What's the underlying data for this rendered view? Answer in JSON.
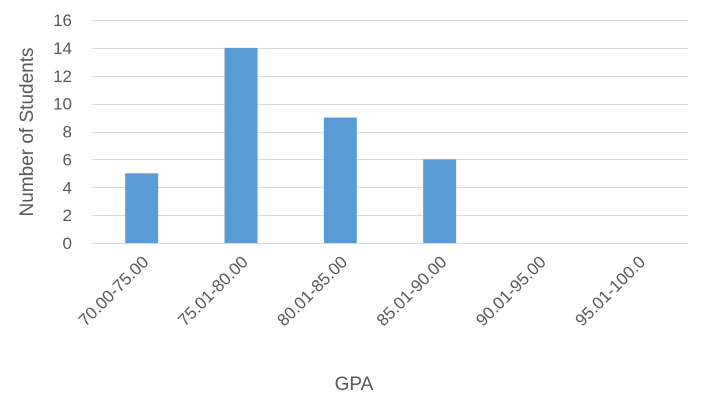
{
  "chart_data": {
    "type": "bar",
    "categories": [
      "70.00-75.00",
      "75.01-80.00",
      "80.01-85.00",
      "85.01-90.00",
      "90.01-95.00",
      "95.01-100.0"
    ],
    "values": [
      5,
      14,
      9,
      6,
      0,
      0
    ],
    "title": "",
    "xlabel": "GPA",
    "ylabel": "Number of Students",
    "ylim": [
      0,
      16
    ],
    "yticks": [
      0,
      2,
      4,
      6,
      8,
      10,
      12,
      14,
      16
    ],
    "grid": true,
    "legend": "none",
    "bar_color": "#5b9bd5",
    "grid_color": "#d9d9d9",
    "text_color": "#595959"
  }
}
